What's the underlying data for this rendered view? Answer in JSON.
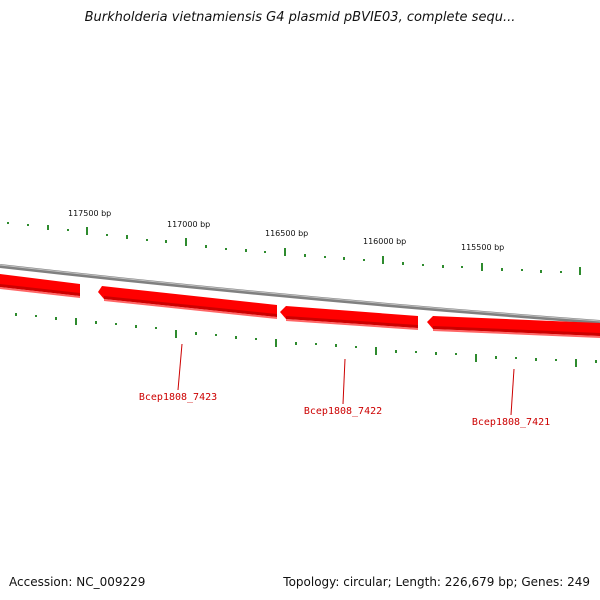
{
  "title": "Burkholderia vietnamiensis G4 plasmid pBVIE03, complete sequ...",
  "footer": {
    "accession": "Accession: NC_009229",
    "summary": "Topology: circular; Length: 226,679 bp; Genes: 249"
  },
  "colors": {
    "backbone": "#808080",
    "gene_fill": "#ff0000",
    "gene_dark": "#cc0000",
    "tick": "#2e8b2e",
    "gene_label": "#cc0000"
  },
  "position_labels": [
    "117500 bp",
    "117000 bp",
    "116500 bp",
    "116000 bp",
    "115500 bp"
  ],
  "genes": [
    {
      "name": "Bcep1808_7423"
    },
    {
      "name": "Bcep1808_7422"
    },
    {
      "name": "Bcep1808_7421"
    }
  ]
}
